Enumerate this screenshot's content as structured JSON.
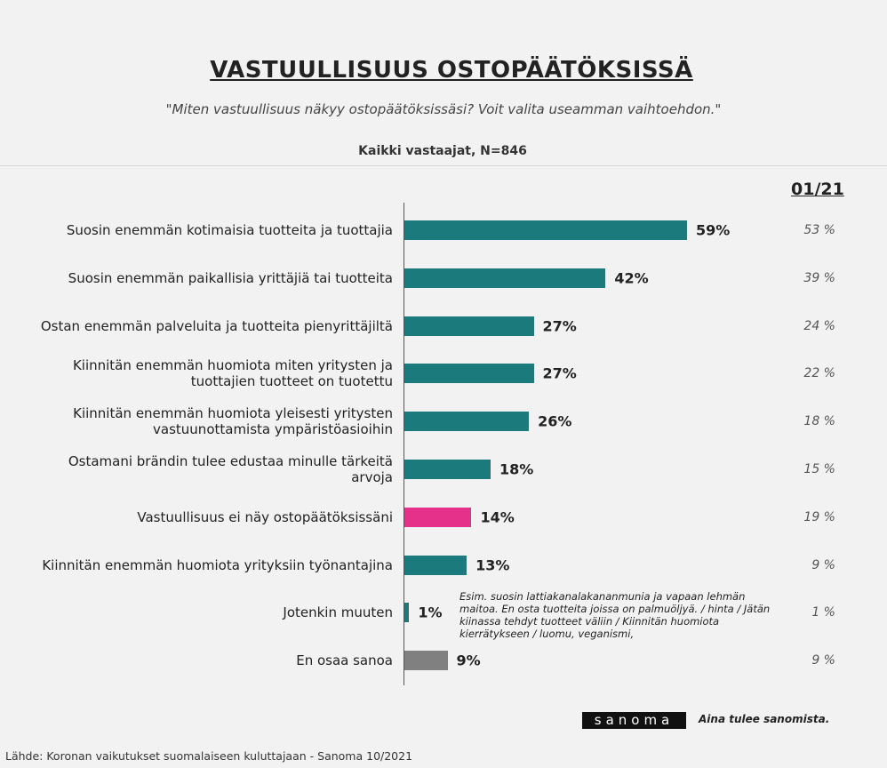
{
  "chart_data": {
    "type": "bar",
    "orientation": "horizontal",
    "title": "VASTUULLISUUS OSTOPÄÄTÖKSISSÄ",
    "subtitle": "\"Miten vastuullisuus näkyy ostopäätöksissäsi? Voit valita useamman vaihtoehdon.\"",
    "base": "Kaikki vastaajat, N=846",
    "categories": [
      "Suosin enemmän kotimaisia tuotteita ja tuottajia",
      "Suosin enemmän paikallisia yrittäjiä tai tuotteita",
      "Ostan enemmän palveluita ja tuotteita pienyrittäjiltä",
      "Kiinnitän enemmän huomiota miten yritysten ja tuottajien tuotteet on tuotettu",
      "Kiinnitän enemmän huomiota yleisesti yritysten vastuunottamista ympäristöasioihin",
      "Ostamani brändin tulee edustaa minulle tärkeitä arvoja",
      "Vastuullisuus ei näy ostopäätöksissäni",
      "Kiinnitän enemmän huomiota yrityksiin työnantajina",
      "Jotenkin muuten",
      "En osaa sanoa"
    ],
    "values": [
      59,
      42,
      27,
      27,
      26,
      18,
      14,
      13,
      1,
      9
    ],
    "value_labels": [
      "59%",
      "42%",
      "27%",
      "27%",
      "26%",
      "18%",
      "14%",
      "13%",
      "1%",
      "9%"
    ],
    "colors": [
      "#1b7b7c",
      "#1b7b7c",
      "#1b7b7c",
      "#1b7b7c",
      "#1b7b7c",
      "#1b7b7c",
      "#e5318a",
      "#1b7b7c",
      "#1b7b7c",
      "#808080"
    ],
    "comparison": {
      "name": "01/21",
      "values": [
        53,
        39,
        24,
        22,
        18,
        15,
        19,
        9,
        1,
        9
      ],
      "value_labels": [
        "53 %",
        "39 %",
        "24 %",
        "22 %",
        "18 %",
        "15 %",
        "19 %",
        "9 %",
        "1 %",
        "9 %"
      ]
    },
    "annotation": "Esim. suosin lattiakanalakananmunia ja vapaan lehmän maitoa. En osta tuotteita joissa on palmuöljyä. / hinta / Jätän kiinassa tehdyt tuotteet väliin / Kiinnitän huomiota kierrätykseen / luomu, veganismi,",
    "source": "Lähde: Koronan vaikutukset suomalaiseen kuluttajaan - Sanoma 10/2021",
    "logo": "sanoma",
    "tagline": "Aina tulee sanomista."
  }
}
